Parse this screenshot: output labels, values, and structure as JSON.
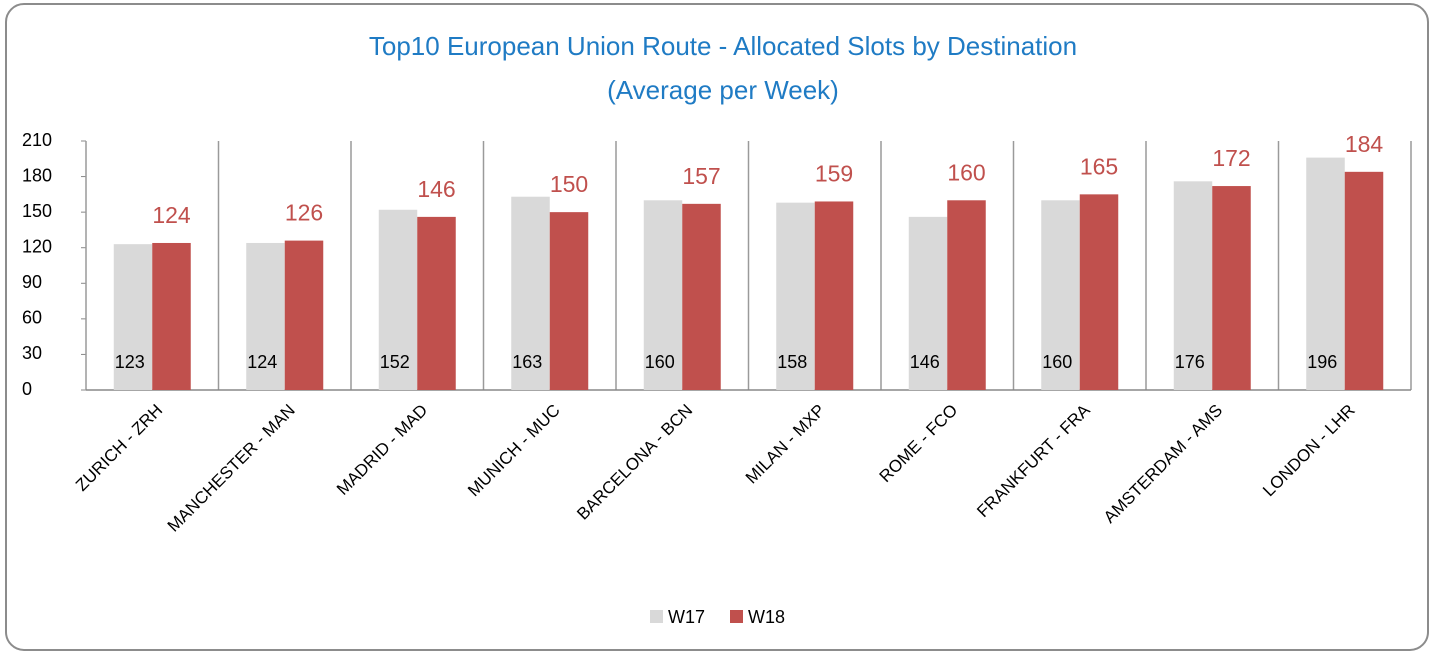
{
  "chart_data": {
    "type": "bar",
    "title": "Top10 European Union Route - Allocated Slots by Destination",
    "subtitle": "(Average per Week)",
    "categories": [
      "ZURICH - ZRH",
      "MANCHESTER - MAN",
      "MADRID - MAD",
      "MUNICH - MUC",
      "BARCELONA - BCN",
      "MILAN - MXP",
      "ROME - FCO",
      "FRANKFURT - FRA",
      "AMSTERDAM - AMS",
      "LONDON - LHR"
    ],
    "series": [
      {
        "name": "W17",
        "color": "#d9d9d9",
        "values": [
          123,
          124,
          152,
          163,
          160,
          158,
          146,
          160,
          176,
          196
        ]
      },
      {
        "name": "W18",
        "color": "#c0504d",
        "values": [
          124,
          126,
          146,
          150,
          157,
          159,
          160,
          165,
          172,
          184
        ]
      }
    ],
    "ylim": [
      0,
      210
    ],
    "yticks": [
      0,
      30,
      60,
      90,
      120,
      150,
      180,
      210
    ],
    "legend": "bottom"
  }
}
